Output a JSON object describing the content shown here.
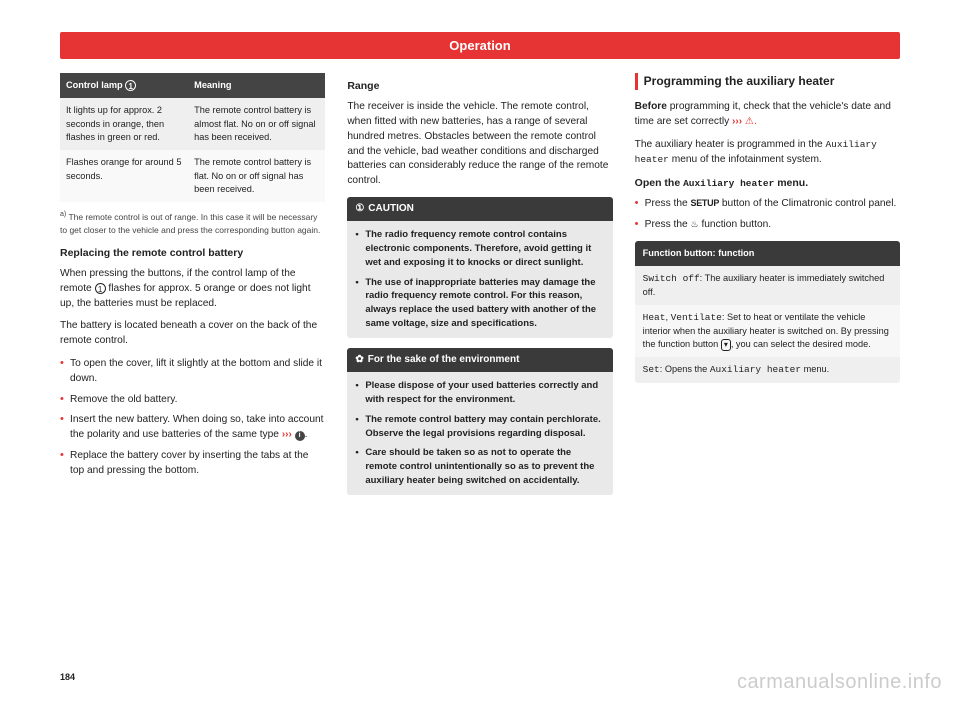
{
  "header": "Operation",
  "page_number": "184",
  "watermark": "carmanualsonline.info",
  "col1": {
    "table": {
      "head_left": "Control lamp",
      "head_left_badge": "1",
      "head_right": "Meaning",
      "rows": [
        {
          "left": "It lights up for approx. 2 seconds in orange, then flashes in green or red.",
          "right": "The remote control battery is almost flat. No on or off signal has been received."
        },
        {
          "left": "Flashes orange for around 5 seconds.",
          "right": "The remote control battery is flat. No on or off signal has been received."
        }
      ]
    },
    "footnote_marker": "a)",
    "footnote": "The remote control is out of range. In this case it will be necessary to get closer to the vehicle and press the corresponding button again.",
    "sub1": "Replacing the remote control battery",
    "p1a": "When pressing the buttons, if the control lamp of the remote ",
    "p1_badge": "1",
    "p1b": " flashes for approx. 5 orange or does not light up, the batteries must be replaced.",
    "p2": "The battery is located beneath a cover on the back of the remote control.",
    "bullets": [
      "To open the cover, lift it slightly at the bottom and slide it down.",
      "Remove the old battery.",
      "Insert the new battery. When doing so, take into account the polarity and use batteries of the same type ››› ⓘ.",
      "Replace the battery cover by inserting the tabs at the top and pressing the bottom."
    ]
  },
  "col2": {
    "sub_range": "Range",
    "range_p": "The receiver is inside the vehicle. The remote control, when fitted with new batteries, has a range of several hundred metres. Obstacles between the remote control and the vehicle, bad weather conditions and discharged batteries can considerably reduce the range of the remote control.",
    "caution": {
      "title": "CAUTION",
      "icon": "①",
      "items": [
        "The radio frequency remote control contains electronic components. Therefore, avoid getting it wet and exposing it to knocks or direct sunlight.",
        "The use of inappropriate batteries may damage the radio frequency remote control. For this reason, always replace the used battery with another of the same voltage, size and specifications."
      ]
    },
    "env": {
      "title": "For the sake of the environment",
      "icon": "✿",
      "items": [
        "Please dispose of your used batteries correctly and with respect for the environment.",
        "The remote control battery may contain perchlorate. Observe the legal provisions regarding disposal.",
        "Care should be taken so as not to operate the remote control unintentionally so as to prevent the auxiliary heater being switched on accidentally."
      ]
    }
  },
  "col3": {
    "section": "Programming the auxiliary heater",
    "p1a": "Before",
    "p1b": " programming it, check that the vehicle's date and time are set correctly ",
    "p1c": "›››",
    "p1d": " ⚠.",
    "p2a": "The auxiliary heater is programmed in the ",
    "p2_mono": "Auxiliary heater",
    "p2b": " menu of the infotainment system.",
    "sub_open_a": "Open the ",
    "sub_open_mono": "Auxiliary heater",
    "sub_open_b": " menu.",
    "bullets": [
      {
        "pre": "Press the ",
        "btn": "SETUP",
        "post": " button of the Climatronic control panel."
      },
      {
        "pre": "Press the ",
        "icon": "♨",
        "post": " function button."
      }
    ],
    "fn_table": {
      "head": "Function button: function",
      "rows": [
        {
          "label": "Switch off",
          "desc": ": The auxiliary heater is immediately switched off."
        },
        {
          "label_a": "Heat",
          "sep": ", ",
          "label_b": "Ventilate",
          "desc": ": Set to heat or ventilate the vehicle interior when the auxiliary heater is switched on. By pressing the function button ",
          "btn": "▾",
          "desc2": ", you can select the desired mode."
        },
        {
          "label": "Set",
          "desc_a": ": Opens the ",
          "mono": "Auxiliary heater",
          "desc_b": " menu."
        }
      ]
    }
  }
}
